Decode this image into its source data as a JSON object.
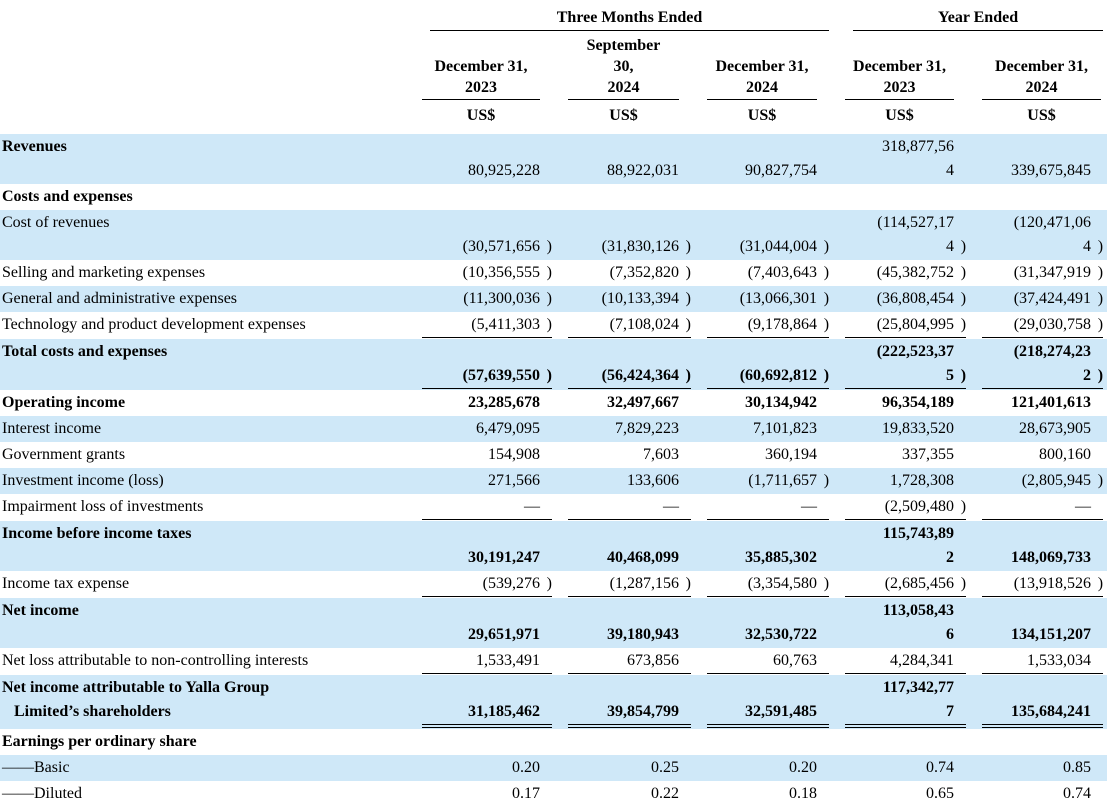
{
  "page": {
    "background": "#ffffff",
    "stripe_color": "#cfe8f8",
    "text_color": "#000000"
  },
  "header": {
    "groups": [
      {
        "label": "Three Months Ended",
        "span": 3
      },
      {
        "label": "Year Ended",
        "span": 2
      }
    ],
    "columns": [
      "December 31,\n2023",
      "September\n30,\n2024",
      "December 31,\n2024",
      "December 31,\n2023",
      "December 31,\n2024"
    ],
    "unit_label": "US$"
  },
  "table": {
    "rows": [
      {
        "label": "Revenues",
        "label_bold": true,
        "stripe": true,
        "values_bold": false,
        "underline": "none",
        "values": [
          "80,925,228",
          "88,922,031",
          "90,827,754",
          "318,877,56\n4",
          "339,675,845"
        ]
      },
      {
        "label": "Costs and expenses",
        "label_bold": true,
        "stripe": false,
        "values_bold": false,
        "underline": "none",
        "values": [
          "",
          "",
          "",
          "",
          ""
        ]
      },
      {
        "label": "Cost of revenues",
        "label_bold": false,
        "stripe": true,
        "values_bold": false,
        "underline": "none",
        "values": [
          "(30,571,656)",
          "(31,830,126)",
          "(31,044,004)",
          "(114,527,17\n4)",
          "(120,471,06\n4)"
        ]
      },
      {
        "label": "Selling and marketing expenses",
        "label_bold": false,
        "stripe": false,
        "values_bold": false,
        "underline": "none",
        "values": [
          "(10,356,555)",
          "(7,352,820)",
          "(7,403,643)",
          "(45,382,752)",
          "(31,347,919)"
        ]
      },
      {
        "label": "General and administrative expenses",
        "label_bold": false,
        "stripe": true,
        "values_bold": false,
        "underline": "none",
        "values": [
          "(11,300,036)",
          "(10,133,394)",
          "(13,066,301)",
          "(36,808,454)",
          "(37,424,491)"
        ]
      },
      {
        "label": "Technology and product development expenses",
        "label_bold": false,
        "stripe": false,
        "values_bold": false,
        "underline": "single",
        "values": [
          "(5,411,303)",
          "(7,108,024)",
          "(9,178,864)",
          "(25,804,995)",
          "(29,030,758)"
        ]
      },
      {
        "label": "Total costs and expenses",
        "label_bold": true,
        "stripe": true,
        "values_bold": true,
        "underline": "single",
        "values": [
          "(57,639,550)",
          "(56,424,364)",
          "(60,692,812)",
          "(222,523,37\n5)",
          "(218,274,23\n2)"
        ]
      },
      {
        "label": "Operating income",
        "label_bold": true,
        "stripe": false,
        "values_bold": true,
        "underline": "none",
        "values": [
          "23,285,678",
          "32,497,667",
          "30,134,942",
          "96,354,189",
          "121,401,613"
        ]
      },
      {
        "label": "Interest income",
        "label_bold": false,
        "stripe": true,
        "values_bold": false,
        "underline": "none",
        "values": [
          "6,479,095",
          "7,829,223",
          "7,101,823",
          "19,833,520",
          "28,673,905"
        ]
      },
      {
        "label": "Government grants",
        "label_bold": false,
        "stripe": false,
        "values_bold": false,
        "underline": "none",
        "values": [
          "154,908",
          "7,603",
          "360,194",
          "337,355",
          "800,160"
        ]
      },
      {
        "label": "Investment income (loss)",
        "label_bold": false,
        "stripe": true,
        "values_bold": false,
        "underline": "none",
        "values": [
          "271,566",
          "133,606",
          "(1,711,657)",
          "1,728,308",
          "(2,805,945)"
        ]
      },
      {
        "label": "Impairment loss of investments",
        "label_bold": false,
        "stripe": false,
        "values_bold": false,
        "underline": "single",
        "values": [
          "—",
          "—",
          "—",
          "(2,509,480)",
          "—"
        ]
      },
      {
        "label": "Income before income taxes",
        "label_bold": true,
        "stripe": true,
        "values_bold": true,
        "underline": "none",
        "values": [
          "30,191,247",
          "40,468,099",
          "35,885,302",
          "115,743,89\n2",
          "148,069,733"
        ]
      },
      {
        "label": "Income tax expense",
        "label_bold": false,
        "stripe": false,
        "values_bold": false,
        "underline": "single",
        "values": [
          "(539,276)",
          "(1,287,156)",
          "(3,354,580)",
          "(2,685,456)",
          "(13,918,526)"
        ]
      },
      {
        "label": "Net income",
        "label_bold": true,
        "stripe": true,
        "values_bold": true,
        "underline": "none",
        "values": [
          "29,651,971",
          "39,180,943",
          "32,530,722",
          "113,058,43\n6",
          "134,151,207"
        ]
      },
      {
        "label": "Net loss attributable to non-controlling interests",
        "label_bold": false,
        "stripe": false,
        "values_bold": false,
        "underline": "single",
        "values": [
          "1,533,491",
          "673,856",
          "60,763",
          "4,284,341",
          "1,533,034"
        ]
      },
      {
        "label": "Net income attributable to Yalla Group\n   Limited’s shareholders",
        "label_bold": true,
        "stripe": true,
        "values_bold": true,
        "underline": "double",
        "values": [
          "31,185,462",
          "39,854,799",
          "32,591,485",
          "117,342,77\n7",
          "135,684,241"
        ]
      },
      {
        "label": "Earnings per ordinary share",
        "label_bold": true,
        "stripe": false,
        "values_bold": false,
        "underline": "none",
        "values": [
          "",
          "",
          "",
          "",
          ""
        ]
      },
      {
        "label": "——Basic",
        "label_bold": false,
        "stripe": true,
        "values_bold": false,
        "underline": "none",
        "values": [
          "0.20",
          "0.25",
          "0.20",
          "0.74",
          "0.85"
        ]
      },
      {
        "label": "——Diluted",
        "label_bold": false,
        "stripe": false,
        "values_bold": false,
        "underline": "none",
        "values": [
          "0.17",
          "0.22",
          "0.18",
          "0.65",
          "0.74"
        ]
      }
    ]
  }
}
